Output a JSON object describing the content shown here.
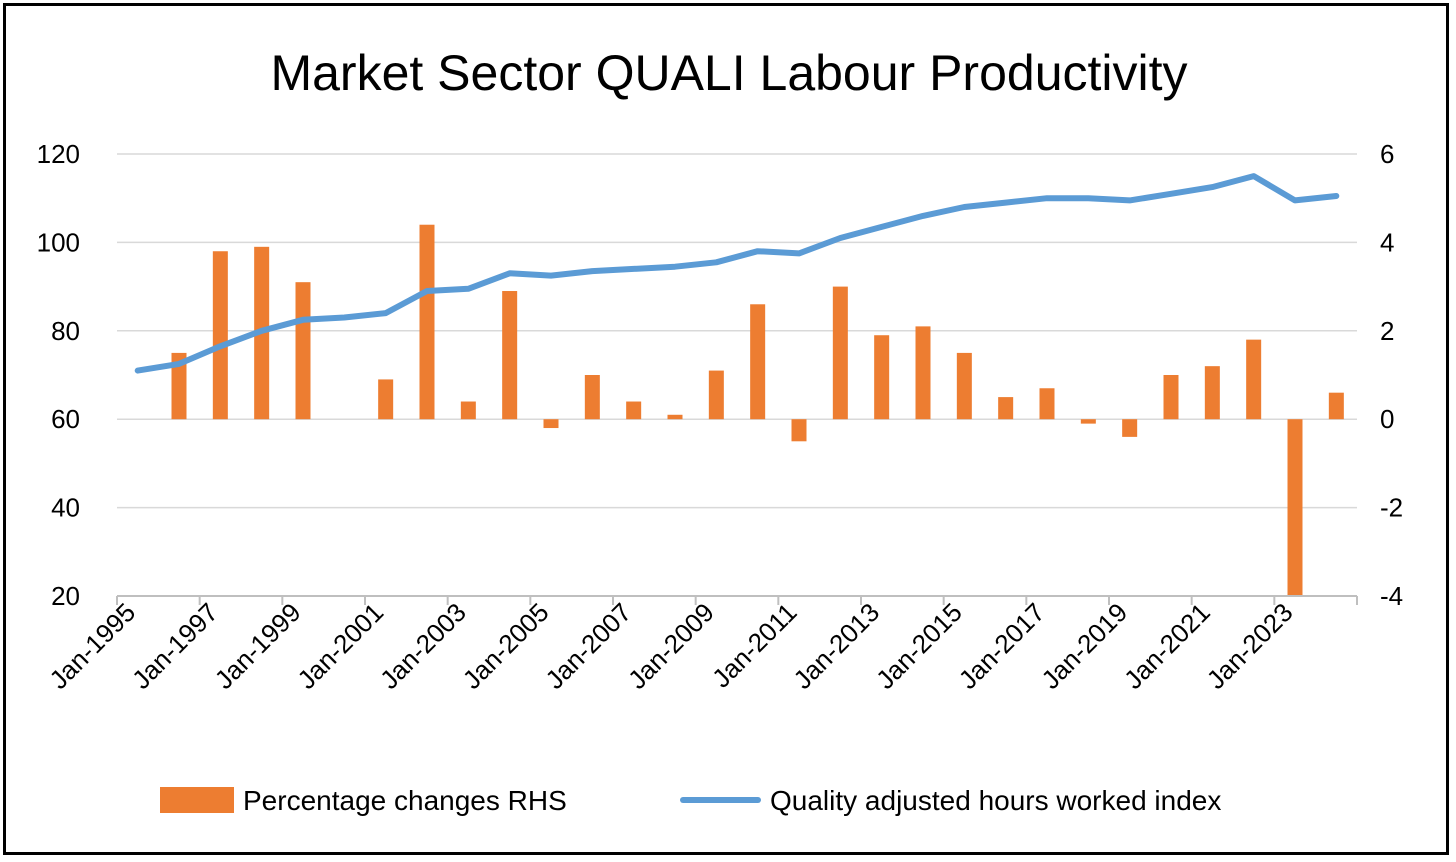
{
  "chart_data": {
    "type": "bar+line",
    "title": "Market Sector QUALI Labour Productivity",
    "x_tick_labels": [
      "Jan-1995",
      "Jan-1997",
      "Jan-1999",
      "Jan-2001",
      "Jan-2003",
      "Jan-2005",
      "Jan-2007",
      "Jan-2009",
      "Jan-2011",
      "Jan-2013",
      "Jan-2015",
      "Jan-2017",
      "Jan-2019",
      "Jan-2021",
      "Jan-2023"
    ],
    "left_axis": {
      "ticks": [
        "120",
        "100",
        "80",
        "60",
        "40",
        "20"
      ],
      "ylim": [
        20,
        120
      ]
    },
    "right_axis": {
      "ticks": [
        "6",
        "4",
        "2",
        "0",
        "-2",
        "-4"
      ],
      "ylim": [
        -4,
        6
      ]
    },
    "categories": [
      "1995",
      "1996",
      "1997",
      "1998",
      "1999",
      "2000",
      "2001",
      "2002",
      "2003",
      "2004",
      "2005",
      "2006",
      "2007",
      "2008",
      "2009",
      "2010",
      "2011",
      "2012",
      "2013",
      "2014",
      "2015",
      "2016",
      "2017",
      "2018",
      "2019",
      "2020",
      "2021",
      "2022",
      "2023",
      "2024"
    ],
    "series": [
      {
        "name": "Percentage changes RHS",
        "type": "bar",
        "axis": "right",
        "color": "#ED7D31",
        "values": [
          null,
          1.5,
          3.8,
          3.9,
          3.1,
          null,
          0.9,
          4.4,
          0.4,
          2.9,
          -0.2,
          1.0,
          0.4,
          0.1,
          1.1,
          2.6,
          -0.5,
          3.0,
          1.9,
          2.1,
          1.5,
          0.5,
          0.7,
          -0.1,
          -0.4,
          1.0,
          1.2,
          1.8,
          -4.0,
          0.6
        ]
      },
      {
        "name": "Quality adjusted hours worked index",
        "type": "line",
        "axis": "left",
        "color": "#5B9BD5",
        "values": [
          71,
          72.5,
          76.5,
          80,
          82.5,
          83,
          84,
          89,
          89.5,
          93,
          92.5,
          93.5,
          94,
          94.5,
          95.5,
          98,
          97.5,
          101,
          103.5,
          106,
          108,
          109,
          110,
          110,
          109.5,
          111,
          112.5,
          115,
          109.5,
          110.5
        ]
      }
    ],
    "legend": {
      "position": "bottom",
      "bar_label": "Percentage changes RHS",
      "line_label": "Quality adjusted hours worked index"
    },
    "grid": true
  }
}
